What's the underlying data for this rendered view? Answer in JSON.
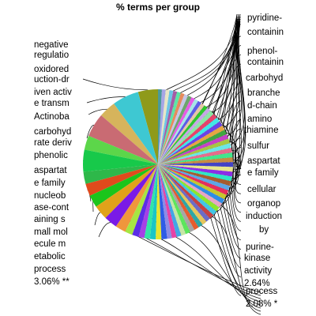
{
  "chart_data": {
    "type": "pie",
    "title": "% terms per group",
    "slices": [
      {
        "label": "",
        "value": 4.2,
        "color": "#8f9a1a"
      },
      {
        "label": "",
        "value": 5.6,
        "color": "#3ec8d2"
      },
      {
        "label": "",
        "value": 3.6,
        "color": "#d6b45c"
      },
      {
        "label": "",
        "value": 5.0,
        "color": "#c96b73"
      },
      {
        "label": "",
        "value": 3.0,
        "color": "#5cd64a"
      },
      {
        "label": "",
        "value": 4.6,
        "color": "#17c94a"
      },
      {
        "label": "",
        "value": 2.6,
        "color": "#2eb84a"
      },
      {
        "label": "",
        "value": 2.6,
        "color": "#e04a1c"
      },
      {
        "label": "",
        "value": 2.6,
        "color": "#1bc51b"
      },
      {
        "label": "",
        "value": 3.06,
        "color": "#e0a21a"
      },
      {
        "label": "",
        "value": 2.8,
        "color": "#7a1ae6"
      },
      {
        "label": "",
        "value": 2.2,
        "color": "#f0963c"
      },
      {
        "label": "",
        "value": 1.6,
        "color": "#a6e642"
      },
      {
        "label": "",
        "value": 1.4,
        "color": "#5c2ee6"
      },
      {
        "label": "",
        "value": 1.2,
        "color": "#a640e6"
      },
      {
        "label": "",
        "value": 1.2,
        "color": "#32e6a6"
      },
      {
        "label": "",
        "value": 1.2,
        "color": "#1ac6c6"
      },
      {
        "label": "",
        "value": 1.2,
        "color": "#e6e62e"
      },
      {
        "label": "",
        "value": 1.2,
        "color": "#2e5ce6"
      },
      {
        "label": "",
        "value": 1.0,
        "color": "#8c8ce6"
      },
      {
        "label": "",
        "value": 1.0,
        "color": "#e642a6"
      },
      {
        "label": "",
        "value": 1.0,
        "color": "#42a6e6"
      },
      {
        "label": "",
        "value": 1.0,
        "color": "#c6e6a6"
      },
      {
        "label": "",
        "value": 1.0,
        "color": "#5ce65c"
      },
      {
        "label": "",
        "value": 1.0,
        "color": "#a6a6a6"
      },
      {
        "label": "",
        "value": 1.0,
        "color": "#e65c2e"
      },
      {
        "label": "",
        "value": 1.0,
        "color": "#2ea6a6"
      },
      {
        "label": "",
        "value": 1.0,
        "color": "#e6c65c"
      },
      {
        "label": "",
        "value": 1.0,
        "color": "#6c6cc6"
      },
      {
        "label": "",
        "value": 1.0,
        "color": "#c64242"
      },
      {
        "label": "",
        "value": 1.0,
        "color": "#42c6e6"
      },
      {
        "label": "",
        "value": 1.0,
        "color": "#8ce62e"
      },
      {
        "label": "",
        "value": 1.0,
        "color": "#e6a6c6"
      },
      {
        "label": "",
        "value": 1.0,
        "color": "#2e8ce6"
      },
      {
        "label": "",
        "value": 1.0,
        "color": "#c6c62e"
      },
      {
        "label": "",
        "value": 1.0,
        "color": "#e62e5c"
      },
      {
        "label": "",
        "value": 1.0,
        "color": "#5ca6e6"
      },
      {
        "label": "",
        "value": 1.0,
        "color": "#a65c2e"
      },
      {
        "label": "",
        "value": 1.0,
        "color": "#2ee6c6"
      },
      {
        "label": "",
        "value": 1.0,
        "color": "#8c2ee6"
      },
      {
        "label": "",
        "value": 1.0,
        "color": "#e6e68c"
      },
      {
        "label": "",
        "value": 1.0,
        "color": "#4242c6"
      },
      {
        "label": "",
        "value": 1.0,
        "color": "#c68c42"
      },
      {
        "label": "",
        "value": 1.0,
        "color": "#42e68c"
      },
      {
        "label": "",
        "value": 1.0,
        "color": "#e66c8c"
      },
      {
        "label": "",
        "value": 1.0,
        "color": "#6ce6e6"
      },
      {
        "label": "",
        "value": 1.0,
        "color": "#a6c642"
      },
      {
        "label": "",
        "value": 1.0,
        "color": "#c642c6"
      },
      {
        "label": "",
        "value": 1.0,
        "color": "#42a642"
      },
      {
        "label": "",
        "value": 1.0,
        "color": "#e6a642"
      },
      {
        "label": "",
        "value": 1.0,
        "color": "#6c42e6"
      },
      {
        "label": "",
        "value": 1.0,
        "color": "#42e6e6"
      },
      {
        "label": "",
        "value": 1.0,
        "color": "#e6426c"
      },
      {
        "label": "",
        "value": 1.0,
        "color": "#8ce6a6"
      },
      {
        "label": "",
        "value": 0.8,
        "color": "#c6a6e6"
      },
      {
        "label": "",
        "value": 0.8,
        "color": "#2ec62e"
      },
      {
        "label": "",
        "value": 0.8,
        "color": "#e6c6a6"
      },
      {
        "label": "",
        "value": 0.8,
        "color": "#5c5ce6"
      },
      {
        "label": "",
        "value": 0.8,
        "color": "#a6e6e6"
      },
      {
        "label": "",
        "value": 0.8,
        "color": "#e65ce6"
      },
      {
        "label": "",
        "value": 0.8,
        "color": "#6ca66c"
      },
      {
        "label": "",
        "value": 0.8,
        "color": "#c6c6e6"
      },
      {
        "label": "",
        "value": 0.8,
        "color": "#e68c5c"
      },
      {
        "label": "",
        "value": 0.8,
        "color": "#5ce6a6"
      },
      {
        "label": "",
        "value": 0.8,
        "color": "#a65ca6"
      },
      {
        "label": "",
        "value": 0.8,
        "color": "#6cc6e6"
      },
      {
        "label": "",
        "value": 0.8,
        "color": "#e6e6c6"
      },
      {
        "label": "",
        "value": 0.8,
        "color": "#a6a6e6"
      },
      {
        "label": "",
        "value": 0.8,
        "color": "#4a9a9a"
      }
    ],
    "left_labels": [
      "negative",
      "regulatio",
      "oxidored",
      "uction-dr",
      "iven activ",
      "e transm",
      "Actinoba",
      "carbohyd",
      "rate deriv",
      "phenolic",
      "aspartat",
      "e family",
      "nucleob",
      "ase-cont",
      "aining s",
      "mall mol",
      "ecule m",
      "etabolic",
      "process",
      "3.06% **"
    ],
    "right_labels": [
      "pyridine-",
      "containin",
      "phenol-",
      "containin",
      "carbohyd",
      "branche",
      "d-chain",
      "amino",
      "thiamine",
      "sulfur",
      "aspartat",
      "e family",
      "cellular",
      "organop",
      "induction",
      "by",
      "purine-",
      "kinase",
      "activity",
      "2.64%",
      "process",
      "2.08% *"
    ]
  }
}
